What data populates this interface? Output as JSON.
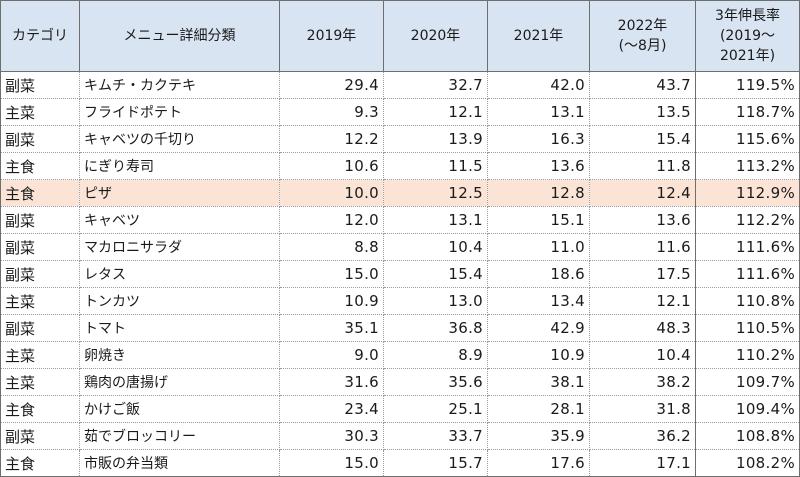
{
  "headers": {
    "category": "カテゴリ",
    "menu": "メニュー詳細分類",
    "y2019": "2019年",
    "y2020": "2020年",
    "y2021": "2021年",
    "y2022_line1": "2022年",
    "y2022_line2": "(〜8月)",
    "growth_line1": "3年伸長率",
    "growth_line2": "(2019〜",
    "growth_line3": "2021年)"
  },
  "highlight_color": "#fbe3d6",
  "header_color": "#d9e4f2",
  "rows": [
    {
      "category": "副菜",
      "menu": "キムチ・カクテキ",
      "y2019": "29.4",
      "y2020": "32.7",
      "y2021": "42.0",
      "y2022": "43.7",
      "growth": "119.5%",
      "highlight": false
    },
    {
      "category": "主菜",
      "menu": "フライドポテト",
      "y2019": "9.3",
      "y2020": "12.1",
      "y2021": "13.1",
      "y2022": "13.5",
      "growth": "118.7%",
      "highlight": false
    },
    {
      "category": "副菜",
      "menu": "キャベツの千切り",
      "y2019": "12.2",
      "y2020": "13.9",
      "y2021": "16.3",
      "y2022": "15.4",
      "growth": "115.6%",
      "highlight": false
    },
    {
      "category": "主食",
      "menu": "にぎり寿司",
      "y2019": "10.6",
      "y2020": "11.5",
      "y2021": "13.6",
      "y2022": "11.8",
      "growth": "113.2%",
      "highlight": false
    },
    {
      "category": "主食",
      "menu": "ピザ",
      "y2019": "10.0",
      "y2020": "12.5",
      "y2021": "12.8",
      "y2022": "12.4",
      "growth": "112.9%",
      "highlight": true
    },
    {
      "category": "副菜",
      "menu": "キャベツ",
      "y2019": "12.0",
      "y2020": "13.1",
      "y2021": "15.1",
      "y2022": "13.6",
      "growth": "112.2%",
      "highlight": false
    },
    {
      "category": "副菜",
      "menu": "マカロニサラダ",
      "y2019": "8.8",
      "y2020": "10.4",
      "y2021": "11.0",
      "y2022": "11.6",
      "growth": "111.6%",
      "highlight": false
    },
    {
      "category": "副菜",
      "menu": "レタス",
      "y2019": "15.0",
      "y2020": "15.4",
      "y2021": "18.6",
      "y2022": "17.5",
      "growth": "111.6%",
      "highlight": false
    },
    {
      "category": "主菜",
      "menu": "トンカツ",
      "y2019": "10.9",
      "y2020": "13.0",
      "y2021": "13.4",
      "y2022": "12.1",
      "growth": "110.8%",
      "highlight": false
    },
    {
      "category": "副菜",
      "menu": "トマト",
      "y2019": "35.1",
      "y2020": "36.8",
      "y2021": "42.9",
      "y2022": "48.3",
      "growth": "110.5%",
      "highlight": false
    },
    {
      "category": "主菜",
      "menu": "卵焼き",
      "y2019": "9.0",
      "y2020": "8.9",
      "y2021": "10.9",
      "y2022": "10.4",
      "growth": "110.2%",
      "highlight": false
    },
    {
      "category": "主菜",
      "menu": "鶏肉の唐揚げ",
      "y2019": "31.6",
      "y2020": "35.6",
      "y2021": "38.1",
      "y2022": "38.2",
      "growth": "109.7%",
      "highlight": false
    },
    {
      "category": "主食",
      "menu": "かけご飯",
      "y2019": "23.4",
      "y2020": "25.1",
      "y2021": "28.1",
      "y2022": "31.8",
      "growth": "109.4%",
      "highlight": false
    },
    {
      "category": "副菜",
      "menu": "茹でブロッコリー",
      "y2019": "30.3",
      "y2020": "33.7",
      "y2021": "35.9",
      "y2022": "36.2",
      "growth": "108.8%",
      "highlight": false
    },
    {
      "category": "主食",
      "menu": "市販の弁当類",
      "y2019": "15.0",
      "y2020": "15.7",
      "y2021": "17.6",
      "y2022": "17.1",
      "growth": "108.2%",
      "highlight": false
    }
  ]
}
